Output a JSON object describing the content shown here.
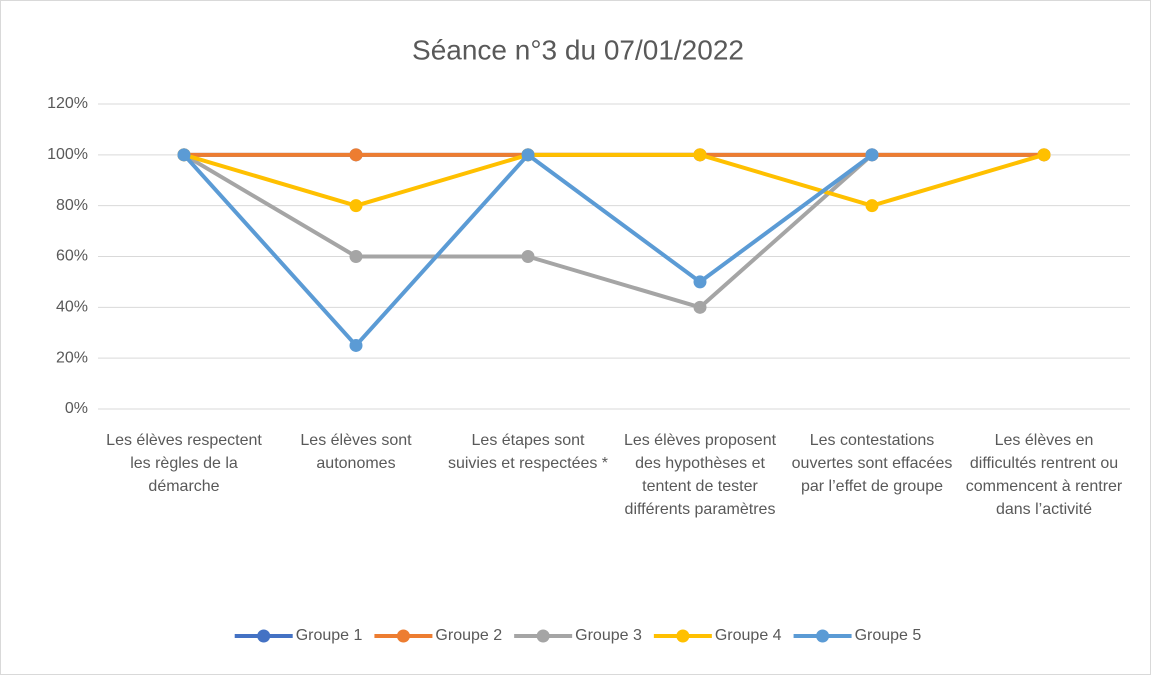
{
  "chart_data": {
    "type": "line",
    "title": "Séance n°3 du 07/01/2022",
    "categories": [
      "Les élèves respectent les règles de la démarche",
      "Les élèves sont autonomes",
      "Les étapes sont suivies et respectées *",
      "Les élèves proposent des hypothèses et tentent de tester différents paramètres",
      "Les contestations ouvertes sont effacées par l’effet de groupe",
      "Les élèves en difficultés rentrent ou commencent à rentrer dans l’activité"
    ],
    "series": [
      {
        "name": "Groupe 1",
        "color": "#4472c4",
        "values": [
          100,
          100,
          100,
          100,
          100,
          100
        ]
      },
      {
        "name": "Groupe 2",
        "color": "#ed7d31",
        "values": [
          100,
          100,
          100,
          100,
          100,
          100
        ]
      },
      {
        "name": "Groupe 3",
        "color": "#a5a5a5",
        "values": [
          100,
          60,
          60,
          40,
          100,
          null
        ]
      },
      {
        "name": "Groupe 4",
        "color": "#ffc000",
        "values": [
          100,
          80,
          100,
          100,
          80,
          100
        ]
      },
      {
        "name": "Groupe 5",
        "color": "#5b9bd5",
        "values": [
          100,
          25,
          100,
          50,
          100,
          null
        ]
      }
    ],
    "ylim": [
      0,
      120
    ],
    "yticks": [
      {
        "value": 0,
        "label": "0%"
      },
      {
        "value": 20,
        "label": "20%"
      },
      {
        "value": 40,
        "label": "40%"
      },
      {
        "value": 60,
        "label": "60%"
      },
      {
        "value": 80,
        "label": "80%"
      },
      {
        "value": 100,
        "label": "100%"
      },
      {
        "value": 120,
        "label": "120%"
      }
    ],
    "grid": true,
    "legend": "bottom"
  }
}
